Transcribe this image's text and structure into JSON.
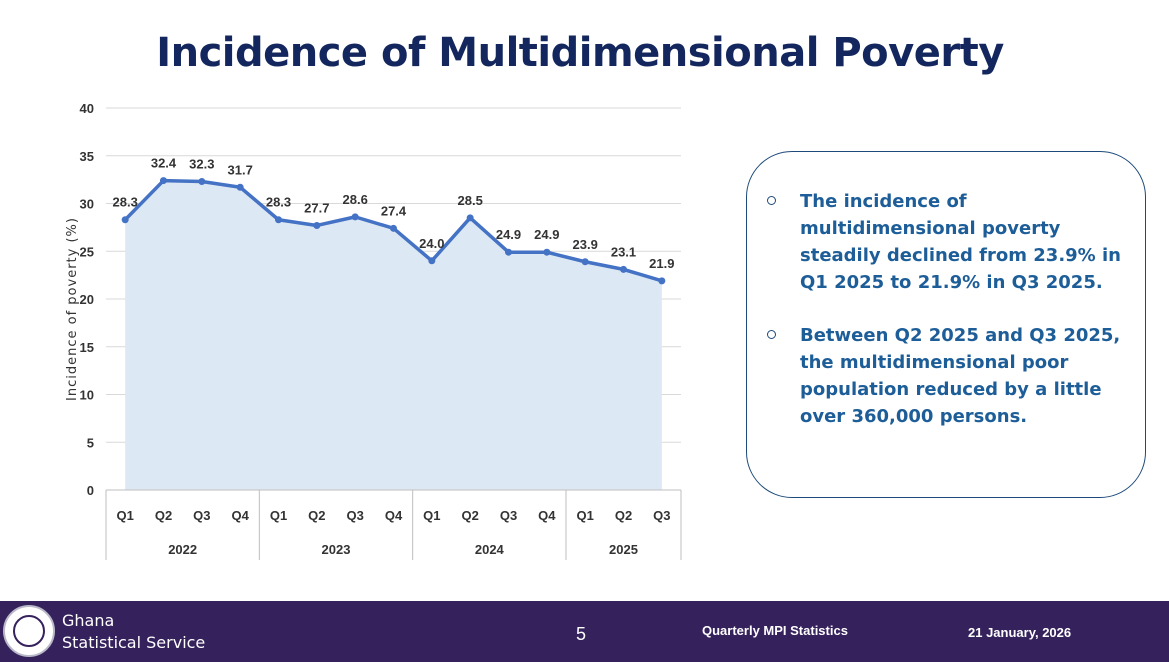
{
  "slide": {
    "title": "Incidence of Multidimensional Poverty"
  },
  "notes": [
    "The incidence of multidimensional poverty steadily declined from 23.9% in Q1 2025 to 21.9% in Q3 2025.",
    "Between Q2 2025 and Q3 2025, the multidimensional poor population reduced by a little over 360,000 persons."
  ],
  "footer": {
    "org_line1": "Ghana",
    "org_line2": "Statistical Service",
    "page_number": "5",
    "report_title": "Quarterly MPI Statistics",
    "date": "21 January, 2026"
  },
  "chart_data": {
    "type": "area",
    "title": "",
    "ylabel": "Incidence of poverty (%)",
    "xlabel": "",
    "ylim": [
      0,
      40
    ],
    "yticks": [
      0,
      5,
      10,
      15,
      20,
      25,
      30,
      35,
      40
    ],
    "grid": true,
    "categories": [
      "Q1",
      "Q2",
      "Q3",
      "Q4",
      "Q1",
      "Q2",
      "Q3",
      "Q4",
      "Q1",
      "Q2",
      "Q3",
      "Q4",
      "Q1",
      "Q2",
      "Q3"
    ],
    "groups": [
      {
        "label": "2022",
        "count": 4
      },
      {
        "label": "2023",
        "count": 4
      },
      {
        "label": "2024",
        "count": 4
      },
      {
        "label": "2025",
        "count": 3
      }
    ],
    "series": [
      {
        "values": [
          28.3,
          32.4,
          32.3,
          31.7,
          28.3,
          27.7,
          28.6,
          27.4,
          24.0,
          28.5,
          24.9,
          24.9,
          23.9,
          23.1,
          21.9
        ],
        "labels": [
          "28.3",
          "32.4",
          "32.3",
          "31.7",
          "28.3",
          "27.7",
          "28.6",
          "27.4",
          "24.0",
          "28.5",
          "24.9",
          "24.9",
          "23.9",
          "23.1",
          "21.9"
        ]
      }
    ],
    "colors": {
      "line": "#4472c4",
      "fill": "#dde8f5"
    }
  }
}
